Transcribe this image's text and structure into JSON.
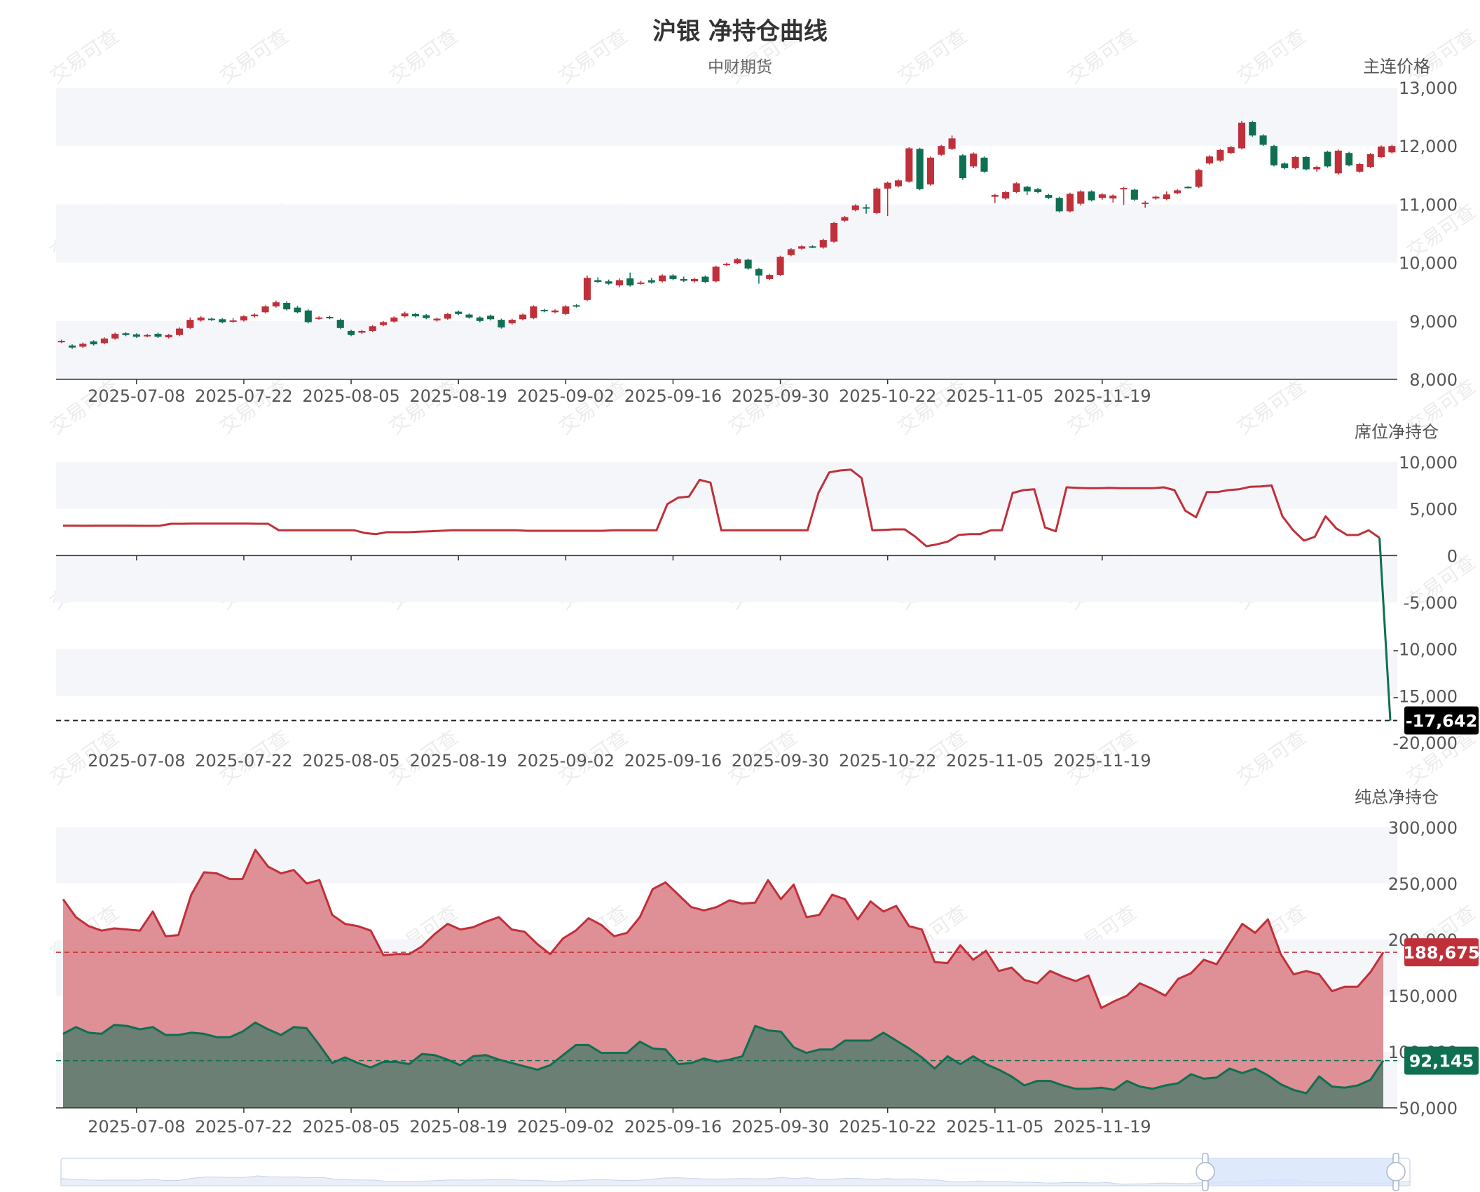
{
  "title": "沪银 净持仓曲线",
  "subtitle": "中财期货",
  "watermark": "交易可查",
  "colors": {
    "up": "#c0303a",
    "down": "#0f6f51",
    "band": "#f5f6fa",
    "axis": "#333333",
    "red_fill": "#dc8a90",
    "green_fill": "#6b7f74",
    "red_badge": "#c0303a",
    "green_badge": "#0f6f51",
    "black_badge": "#000000"
  },
  "chart_data": [
    {
      "type": "candlestick",
      "name": "price-panel",
      "axis_name": "主连价格",
      "y_ticks": [
        "8,000",
        "9,000",
        "10,000",
        "11,000",
        "12,000",
        "13,000"
      ],
      "ylim": [
        8000,
        13000
      ],
      "x_ticks": [
        "2025-07-08",
        "2025-07-22",
        "2025-08-05",
        "2025-08-19",
        "2025-09-02",
        "2025-09-16",
        "2025-09-30",
        "2025-10-22",
        "2025-11-05",
        "2025-11-19"
      ],
      "x_tick_index": [
        7,
        17,
        27,
        37,
        47,
        57,
        67,
        77,
        87,
        97
      ],
      "candles": [
        [
          8635,
          8660,
          8620,
          8680
        ],
        [
          8580,
          8545,
          8520,
          8600
        ],
        [
          8560,
          8610,
          8540,
          8630
        ],
        [
          8650,
          8600,
          8580,
          8670
        ],
        [
          8620,
          8700,
          8600,
          8720
        ],
        [
          8700,
          8780,
          8680,
          8800
        ],
        [
          8790,
          8760,
          8740,
          8810
        ],
        [
          8770,
          8730,
          8710,
          8790
        ],
        [
          8740,
          8760,
          8720,
          8780
        ],
        [
          8780,
          8730,
          8710,
          8800
        ],
        [
          8720,
          8760,
          8700,
          8780
        ],
        [
          8760,
          8870,
          8740,
          8890
        ],
        [
          8880,
          9020,
          8860,
          9060
        ],
        [
          9010,
          9060,
          8990,
          9080
        ],
        [
          9040,
          9030,
          9000,
          9060
        ],
        [
          9030,
          8980,
          8960,
          9050
        ],
        [
          8990,
          9010,
          8970,
          9050
        ],
        [
          9010,
          9080,
          8990,
          9100
        ],
        [
          9080,
          9110,
          9060,
          9130
        ],
        [
          9150,
          9250,
          9130,
          9270
        ],
        [
          9250,
          9320,
          9230,
          9350
        ],
        [
          9310,
          9200,
          9180,
          9340
        ],
        [
          9230,
          9150,
          9130,
          9260
        ],
        [
          9180,
          8980,
          8960,
          9200
        ],
        [
          9040,
          9060,
          9020,
          9080
        ],
        [
          9070,
          9050,
          9030,
          9090
        ],
        [
          9020,
          8880,
          8860,
          9040
        ],
        [
          8830,
          8760,
          8740,
          8850
        ],
        [
          8800,
          8830,
          8780,
          8850
        ],
        [
          8830,
          8910,
          8810,
          8930
        ],
        [
          8930,
          8980,
          8910,
          9000
        ],
        [
          8990,
          9060,
          8970,
          9080
        ],
        [
          9080,
          9130,
          9060,
          9160
        ],
        [
          9120,
          9080,
          9060,
          9140
        ],
        [
          9100,
          9050,
          9030,
          9120
        ],
        [
          9010,
          9040,
          8990,
          9060
        ],
        [
          9040,
          9120,
          9020,
          9140
        ],
        [
          9160,
          9120,
          9100,
          9180
        ],
        [
          9110,
          9060,
          9040,
          9130
        ],
        [
          9060,
          9000,
          8980,
          9080
        ],
        [
          9090,
          9030,
          9010,
          9110
        ],
        [
          9020,
          8890,
          8870,
          9040
        ],
        [
          8960,
          9020,
          8940,
          9040
        ],
        [
          9030,
          9110,
          9010,
          9130
        ],
        [
          9050,
          9250,
          9030,
          9270
        ],
        [
          9190,
          9170,
          9150,
          9210
        ],
        [
          9150,
          9180,
          9130,
          9200
        ],
        [
          9120,
          9250,
          9100,
          9270
        ],
        [
          9270,
          9250,
          9230,
          9290
        ],
        [
          9360,
          9740,
          9340,
          9780
        ],
        [
          9700,
          9670,
          9650,
          9750
        ],
        [
          9680,
          9640,
          9620,
          9710
        ],
        [
          9610,
          9700,
          9580,
          9730
        ],
        [
          9730,
          9610,
          9590,
          9830
        ],
        [
          9640,
          9660,
          9620,
          9690
        ],
        [
          9700,
          9660,
          9640,
          9740
        ],
        [
          9680,
          9780,
          9660,
          9800
        ],
        [
          9780,
          9720,
          9700,
          9800
        ],
        [
          9720,
          9690,
          9670,
          9760
        ],
        [
          9680,
          9720,
          9660,
          9740
        ],
        [
          9760,
          9670,
          9650,
          9780
        ],
        [
          9680,
          9930,
          9660,
          9950
        ],
        [
          9960,
          9980,
          9940,
          10000
        ],
        [
          9990,
          10060,
          9970,
          10080
        ],
        [
          10050,
          9900,
          9880,
          10070
        ],
        [
          9890,
          9780,
          9640,
          9910
        ],
        [
          9720,
          9790,
          9700,
          9810
        ],
        [
          9790,
          10100,
          9770,
          10120
        ],
        [
          10130,
          10230,
          10110,
          10250
        ],
        [
          10240,
          10280,
          10220,
          10300
        ],
        [
          10280,
          10270,
          10250,
          10300
        ],
        [
          10260,
          10390,
          10240,
          10410
        ],
        [
          10360,
          10680,
          10340,
          10700
        ],
        [
          10720,
          10780,
          10700,
          10800
        ],
        [
          10900,
          10980,
          10880,
          11000
        ],
        [
          10950,
          10940,
          10840,
          11000
        ],
        [
          10850,
          11270,
          10830,
          11290
        ],
        [
          11270,
          11370,
          10800,
          11390
        ],
        [
          11310,
          11410,
          11290,
          11430
        ],
        [
          11390,
          11960,
          11370,
          11980
        ],
        [
          11950,
          11260,
          11240,
          11970
        ],
        [
          11340,
          11800,
          11320,
          11820
        ],
        [
          11850,
          12000,
          11830,
          12020
        ],
        [
          11950,
          12130,
          11930,
          12180
        ],
        [
          11840,
          11450,
          11420,
          11860
        ],
        [
          11650,
          11870,
          11620,
          11890
        ],
        [
          11800,
          11560,
          11540,
          11820
        ],
        [
          11130,
          11160,
          11020,
          11180
        ],
        [
          11100,
          11210,
          11080,
          11230
        ],
        [
          11210,
          11360,
          11190,
          11380
        ],
        [
          11300,
          11220,
          11160,
          11320
        ],
        [
          11260,
          11210,
          11190,
          11280
        ],
        [
          11160,
          11110,
          11090,
          11180
        ],
        [
          11110,
          10880,
          10860,
          11130
        ],
        [
          10880,
          11180,
          10860,
          11200
        ],
        [
          11010,
          11220,
          10980,
          11240
        ],
        [
          11220,
          11070,
          11050,
          11240
        ],
        [
          11110,
          11170,
          11080,
          11190
        ],
        [
          11100,
          11150,
          11030,
          11170
        ],
        [
          11280,
          11280,
          10990,
          11300
        ],
        [
          11250,
          11080,
          11060,
          11270
        ],
        [
          11030,
          11030,
          10940,
          11060
        ],
        [
          11100,
          11130,
          11080,
          11150
        ],
        [
          11090,
          11170,
          11070,
          11220
        ],
        [
          11190,
          11240,
          11170,
          11260
        ],
        [
          11300,
          11290,
          11270,
          11310
        ],
        [
          11300,
          11590,
          11280,
          11610
        ],
        [
          11700,
          11820,
          11680,
          11840
        ],
        [
          11750,
          11930,
          11730,
          11950
        ],
        [
          11880,
          11980,
          11860,
          12000
        ],
        [
          11960,
          12400,
          11940,
          12430
        ],
        [
          12410,
          12180,
          12160,
          12430
        ],
        [
          12180,
          12020,
          12000,
          12200
        ],
        [
          12000,
          11670,
          11650,
          12020
        ],
        [
          11700,
          11620,
          11600,
          11720
        ],
        [
          11620,
          11810,
          11600,
          11830
        ],
        [
          11810,
          11600,
          11580,
          11830
        ],
        [
          11600,
          11640,
          11560,
          11660
        ],
        [
          11900,
          11650,
          11630,
          11920
        ],
        [
          11530,
          11920,
          11510,
          11940
        ],
        [
          11880,
          11670,
          11650,
          11900
        ],
        [
          11560,
          11690,
          11540,
          11710
        ],
        [
          11640,
          11860,
          11620,
          11880
        ],
        [
          11810,
          11990,
          11790,
          12010
        ],
        [
          11890,
          12000,
          11870,
          12020
        ]
      ]
    },
    {
      "type": "line",
      "name": "seat-net-panel",
      "axis_name": "席位净持仓",
      "y_ticks": [
        "10,000",
        "5,000",
        "0",
        "-5,000",
        "-10,000",
        "-15,000",
        "-20,000"
      ],
      "ylim": [
        -20000,
        10000
      ],
      "x_ticks": [
        "2025-07-08",
        "2025-07-22",
        "2025-08-05",
        "2025-08-19",
        "2025-09-02",
        "2025-09-16",
        "2025-09-30",
        "2025-10-22",
        "2025-11-05",
        "2025-11-19"
      ],
      "last_value_label": "-17,642",
      "values": [
        3200,
        3200,
        3180,
        3200,
        3200,
        3200,
        3200,
        3180,
        3180,
        3200,
        3400,
        3400,
        3420,
        3420,
        3420,
        3420,
        3420,
        3420,
        3400,
        3400,
        2700,
        2700,
        2700,
        2700,
        2700,
        2700,
        2700,
        2700,
        2400,
        2300,
        2500,
        2500,
        2500,
        2550,
        2600,
        2650,
        2700,
        2700,
        2700,
        2700,
        2700,
        2700,
        2700,
        2650,
        2650,
        2650,
        2650,
        2650,
        2650,
        2650,
        2650,
        2700,
        2700,
        2700,
        2700,
        2700,
        5500,
        6200,
        6300,
        8100,
        7800,
        2700,
        2700,
        2700,
        2700,
        2700,
        2700,
        2700,
        2700,
        2700,
        6700,
        8900,
        9100,
        9200,
        8300,
        2700,
        2750,
        2800,
        2800,
        2000,
        1000,
        1200,
        1500,
        2200,
        2300,
        2300,
        2700,
        2700,
        6700,
        7000,
        7100,
        3000,
        2600,
        7300,
        7250,
        7200,
        7200,
        7250,
        7200,
        7200,
        7200,
        7200,
        7300,
        7000,
        4800,
        4100,
        6800,
        6800,
        7000,
        7100,
        7350,
        7400,
        7500,
        4200,
        2700,
        1600,
        2000,
        4200,
        2900,
        2200,
        2200,
        2700,
        1900,
        -17642
      ]
    },
    {
      "type": "area",
      "name": "total-net-panel",
      "axis_name": "纯总净持仓",
      "y_ticks": [
        "50,000",
        "100,000",
        "150,000",
        "200,000",
        "250,000",
        "300,000"
      ],
      "ylim": [
        50000,
        300000
      ],
      "x_ticks": [
        "2025-07-08",
        "2025-07-22",
        "2025-08-05",
        "2025-08-19",
        "2025-09-02",
        "2025-09-16",
        "2025-09-30",
        "2025-10-22",
        "2025-11-05",
        "2025-11-19"
      ],
      "series": [
        {
          "last_value_label": "188,675",
          "values": [
            236000,
            220000,
            212000,
            208000,
            210000,
            209000,
            208000,
            225000,
            203000,
            204000,
            240000,
            260000,
            259000,
            254000,
            254000,
            280000,
            265000,
            259000,
            262000,
            250000,
            253000,
            222000,
            214000,
            212000,
            208000,
            186000,
            187000,
            187000,
            194000,
            205000,
            214000,
            209000,
            211000,
            216000,
            220000,
            209000,
            207000,
            196000,
            187000,
            201000,
            208000,
            219000,
            213000,
            203000,
            206000,
            220000,
            245000,
            251000,
            240000,
            229000,
            226000,
            229000,
            235000,
            232000,
            233000,
            253000,
            236000,
            249000,
            220000,
            222000,
            240000,
            236000,
            218000,
            234000,
            225000,
            230000,
            212000,
            209000,
            180000,
            179000,
            195000,
            182000,
            190000,
            172000,
            175000,
            164000,
            161000,
            172000,
            167000,
            163000,
            168000,
            139000,
            145000,
            150000,
            161000,
            156000,
            150000,
            165000,
            170000,
            182000,
            178000,
            196000,
            214000,
            206000,
            218000,
            187000,
            169000,
            172000,
            169000,
            154000,
            158000,
            158000,
            171000,
            188675
          ]
        },
        {
          "last_value_label": "92,145",
          "values": [
            116000,
            122000,
            117000,
            116000,
            124000,
            123000,
            120000,
            122000,
            115000,
            115000,
            117000,
            116000,
            113000,
            113000,
            118000,
            126000,
            120000,
            115000,
            122000,
            121000,
            106000,
            90000,
            95000,
            90000,
            86000,
            91000,
            91000,
            89000,
            98000,
            97000,
            93000,
            88000,
            96000,
            97000,
            93000,
            90000,
            87000,
            84000,
            88000,
            97000,
            106000,
            106000,
            99000,
            99000,
            99000,
            109000,
            103000,
            102000,
            89000,
            90000,
            94000,
            91000,
            93000,
            96000,
            123000,
            119000,
            118000,
            104000,
            99000,
            102000,
            102000,
            110000,
            110000,
            110000,
            117000,
            110000,
            103000,
            95000,
            85000,
            96000,
            89000,
            96000,
            89000,
            84000,
            78000,
            70000,
            74000,
            74000,
            70000,
            67000,
            67000,
            68000,
            66000,
            74000,
            69000,
            67000,
            70000,
            72000,
            80000,
            76000,
            77000,
            85000,
            81000,
            85000,
            79000,
            71000,
            66000,
            63000,
            78000,
            69000,
            68000,
            70000,
            75000,
            92145
          ]
        }
      ]
    }
  ]
}
